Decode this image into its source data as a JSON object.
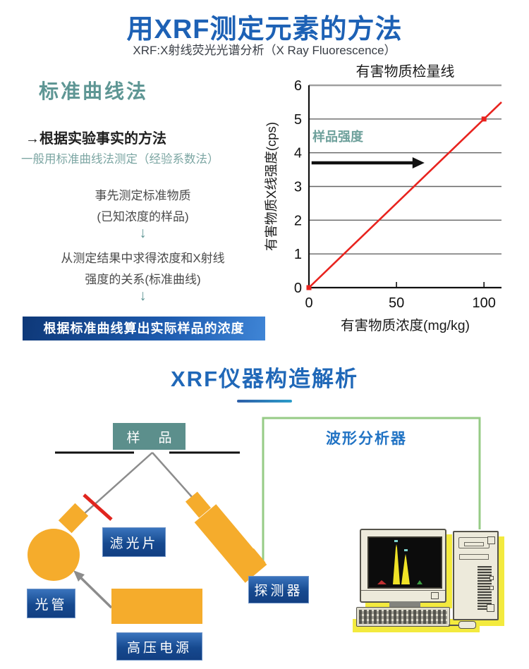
{
  "header": {
    "title": "用XRF测定元素的方法",
    "subtitle": "XRF:X射线荧光光谱分析（X Ray Fluorescence）",
    "title_color": "#1d61b5"
  },
  "standard_curve": {
    "heading": "标准曲线法",
    "heading_color": "#5e9694",
    "intro_bold": "→根据实验事实的方法",
    "intro_note": "一般用标准曲线法测定（经验系数法）",
    "note_color": "#7ca6a3",
    "step1_line1": "事先测定标准物质",
    "step1_line2": "(已知浓度的样品)",
    "arrow_down": "↓",
    "step2_line1": "从测定结果中求得浓度和X射线",
    "step2_line2": "强度的关系(标准曲线)",
    "result": "根据标准曲线算出实际样品的浓度"
  },
  "chart_data": {
    "type": "line",
    "title": "有害物质检量线",
    "xlabel": "有害物质浓度(mg/kg)",
    "ylabel": "有害物质X线强度(cps)",
    "xlim": [
      0,
      110
    ],
    "ylim": [
      0,
      6
    ],
    "xticks": [
      0,
      50,
      100
    ],
    "yticks": [
      0,
      1,
      2,
      3,
      4,
      5,
      6
    ],
    "grid": "horizontal",
    "series": [
      {
        "name": "检量线",
        "color": "#e8231e",
        "x": [
          0,
          110
        ],
        "y": [
          0,
          5.5
        ],
        "markers": [
          [
            0,
            0
          ],
          [
            100,
            5
          ]
        ]
      }
    ],
    "annotation": {
      "label": "样品强度",
      "label_color": "#6fa19c",
      "arrow": {
        "y": 3.7,
        "x_from": 1.5,
        "x_to": 66
      }
    }
  },
  "section2": {
    "title": "XRF仪器构造解析",
    "title_color": "#2068b8"
  },
  "diagram": {
    "labels": {
      "sample": "样 品",
      "analyzer": "波形分析器",
      "filter": "滤光片",
      "tube": "光管",
      "detector": "探测器",
      "power": "高压电源"
    },
    "colors": {
      "orange": "#f5ac2c",
      "sample_teal": "#5c8f8c",
      "analyzer_text": "#2173c4",
      "green_wire": "#96cb86",
      "red_filter": "#e0251e",
      "gray_line": "#8c8c8c",
      "shadow_yellow": "#f3ea3e",
      "label_blue_from": "#3a74bd",
      "label_blue_to": "#123f82"
    }
  }
}
